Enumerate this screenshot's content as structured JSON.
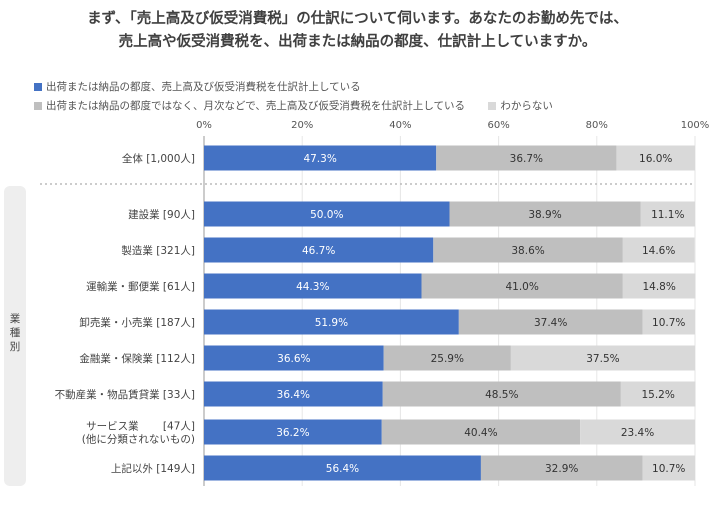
{
  "title": {
    "line1": "まず、「売上高及び仮受消費税」の仕訳について伺います。あなたのお勤め先では、",
    "line2": "売上高や仮受消費税を、出荷または納品の都度、仕訳計上していますか。"
  },
  "legend": [
    {
      "label": "出荷または納品の都度、売上高及び仮受消費税を仕訳計上している",
      "color": "#4472c4"
    },
    {
      "label": "出荷または納品の都度ではなく、月次などで、売上高及び仮受消費税を仕訳計上している",
      "color": "#bfbfbf"
    },
    {
      "label": "わからない",
      "color": "#d9d9d9"
    }
  ],
  "group_label": "業種別",
  "chart_data": {
    "type": "bar",
    "orientation": "horizontal",
    "stacked": true,
    "xlim": [
      0,
      100
    ],
    "x_ticks": [
      "0%",
      "20%",
      "40%",
      "60%",
      "80%",
      "100%"
    ],
    "categories": [
      "全体 [1,000人]",
      "建設業 [90人]",
      "製造業 [321人]",
      "運輸業・郵便業 [61人]",
      "卸売業・小売業 [187人]",
      "金融業・保険業 [112人]",
      "不動産業・物品賃貸業 [33人]",
      "サービス業　　 [47人]\n(他に分類されないもの)",
      "上記以外 [149人]"
    ],
    "series": [
      {
        "name": "出荷または納品の都度、売上高及び仮受消費税を仕訳計上している",
        "color": "#4472c4",
        "text_color": "#ffffff",
        "values": [
          47.3,
          50.0,
          46.7,
          44.3,
          51.9,
          36.6,
          36.4,
          36.2,
          56.4
        ]
      },
      {
        "name": "出荷または納品の都度ではなく、月次などで、売上高及び仮受消費税を仕訳計上している",
        "color": "#bfbfbf",
        "text_color": "#333333",
        "values": [
          36.7,
          38.9,
          38.6,
          41.0,
          37.4,
          25.9,
          48.5,
          40.4,
          32.9
        ]
      },
      {
        "name": "わからない",
        "color": "#d9d9d9",
        "text_color": "#333333",
        "values": [
          16.0,
          11.1,
          14.6,
          14.8,
          10.7,
          37.5,
          15.2,
          23.4,
          10.7
        ]
      }
    ]
  }
}
